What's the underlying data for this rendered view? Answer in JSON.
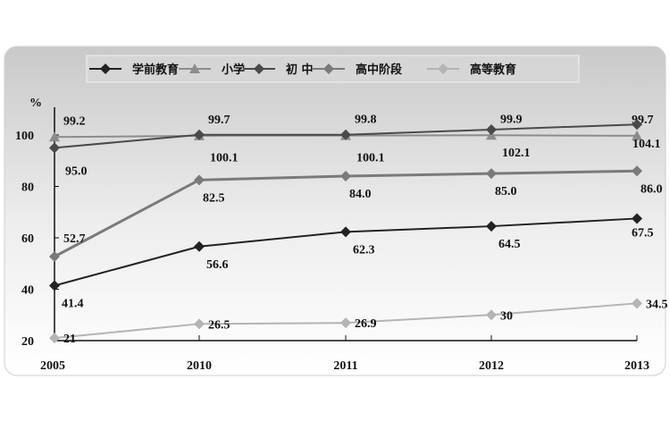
{
  "chart_data": {
    "type": "line",
    "title": "",
    "xlabel": "",
    "ylabel": "%",
    "categories": [
      "2005",
      "2010",
      "2011",
      "2012",
      "2013"
    ],
    "ylim": [
      20,
      100
    ],
    "yticks": [
      20,
      40,
      60,
      80,
      100
    ],
    "grid": false,
    "legend_position": "top",
    "series": [
      {
        "name": "学前教育",
        "values": [
          41.4,
          56.6,
          62.3,
          64.5,
          67.5
        ],
        "labels": [
          "41.4",
          "56.6",
          "62.3",
          "64.5",
          "67.5"
        ],
        "color": "#222222",
        "marker": "diamond"
      },
      {
        "name": "小学",
        "values": [
          99.2,
          99.7,
          99.8,
          99.9,
          99.7
        ],
        "labels": [
          "99.2",
          "99.7",
          "99.8",
          "99.9",
          "99.7"
        ],
        "color": "#8c8c8c",
        "marker": "triangle"
      },
      {
        "name": "初 中",
        "values": [
          95.0,
          100.1,
          100.1,
          102.1,
          104.1
        ],
        "labels": [
          "95.0",
          "100.1",
          "100.1",
          "102.1",
          "104.1"
        ],
        "color": "#4a4a4a",
        "marker": "diamond"
      },
      {
        "name": "高中阶段",
        "values": [
          52.7,
          82.5,
          84.0,
          85.0,
          86.0
        ],
        "labels": [
          "52.7",
          "82.5",
          "84.0",
          "85.0",
          "86.0"
        ],
        "color": "#7a7a7a",
        "marker": "diamond"
      },
      {
        "name": "高等教育",
        "values": [
          21,
          26.5,
          26.9,
          30,
          34.5
        ],
        "labels": [
          "21",
          "26.5",
          "26.9",
          "30",
          "34.5"
        ],
        "color": "#b4b4b4",
        "marker": "diamond"
      }
    ]
  }
}
